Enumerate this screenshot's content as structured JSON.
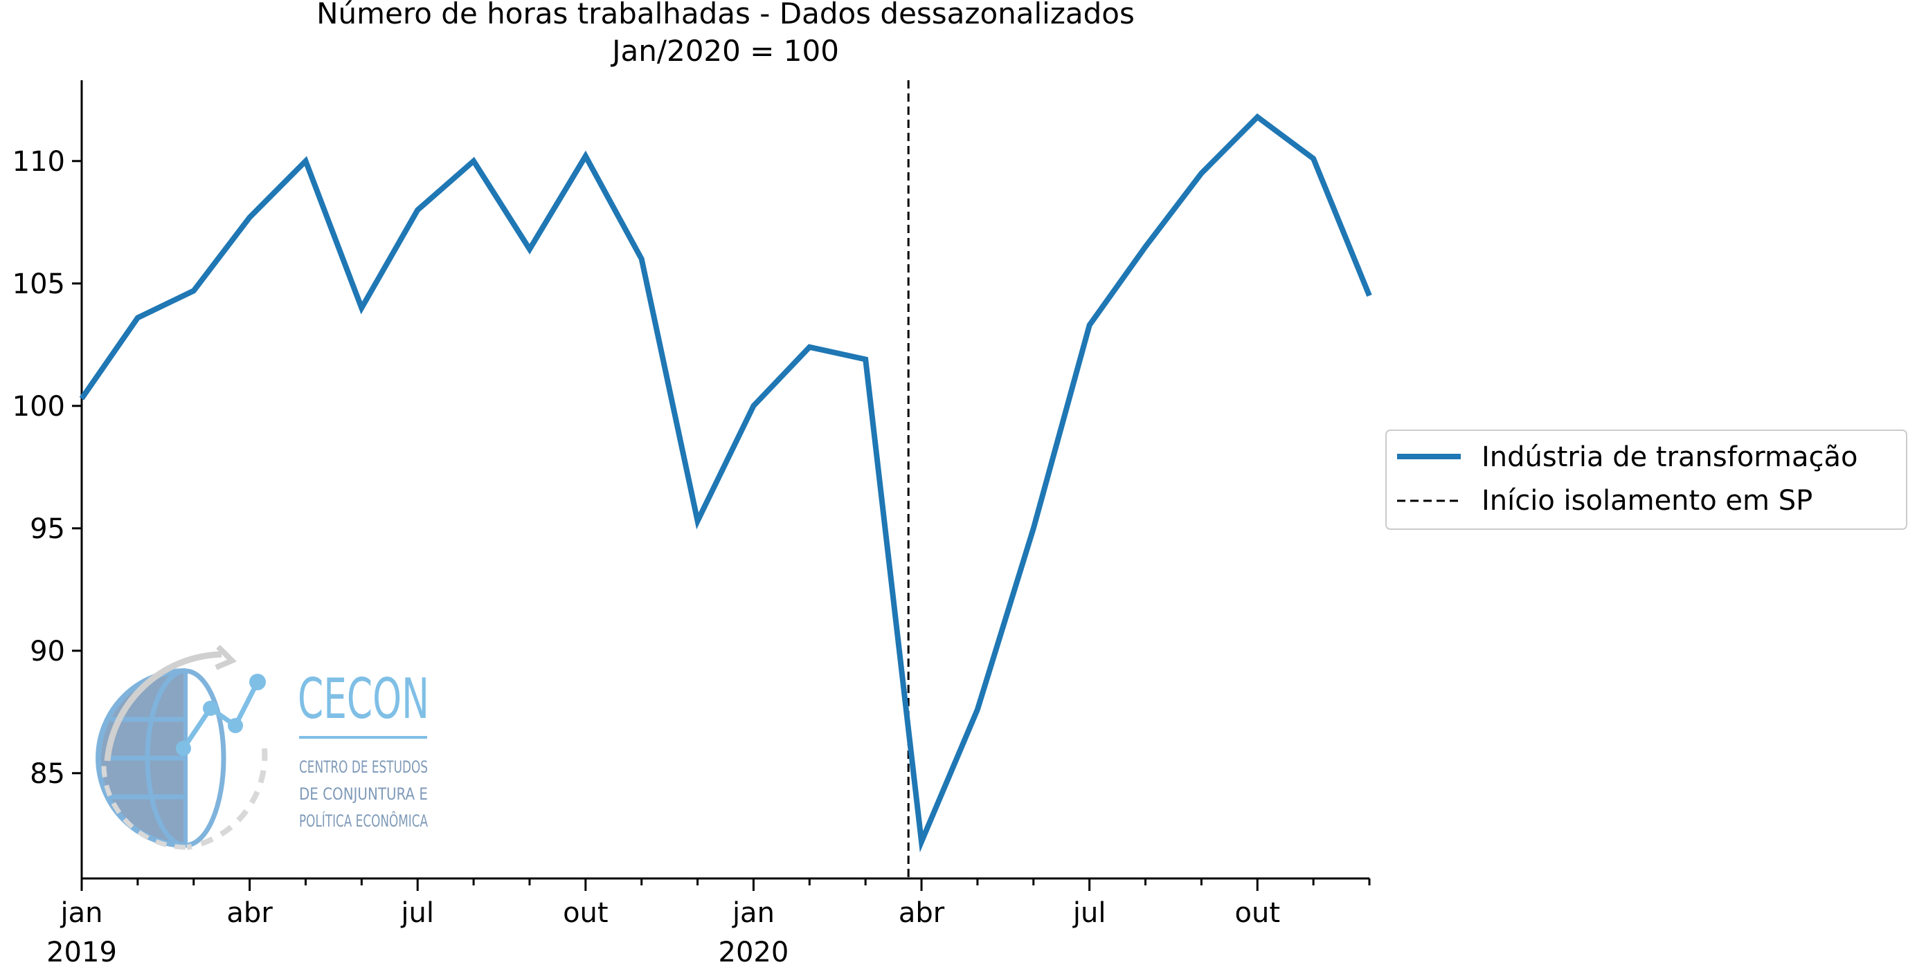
{
  "chart_data": {
    "type": "line",
    "title": "Número de horas trabalhadas - Dados dessazonalizados",
    "subtitle": "Jan/2020 = 100",
    "x_tick_labels": [
      "jan",
      "abr",
      "jul",
      "out",
      "jan",
      "abr",
      "jul",
      "out"
    ],
    "x_year_labels": [
      "2019",
      "2020"
    ],
    "x": [
      "2019-01",
      "2019-02",
      "2019-03",
      "2019-04",
      "2019-05",
      "2019-06",
      "2019-07",
      "2019-08",
      "2019-09",
      "2019-10",
      "2019-11",
      "2019-12",
      "2020-01",
      "2020-02",
      "2020-03",
      "2020-04",
      "2020-05",
      "2020-06",
      "2020-07",
      "2020-08",
      "2020-09",
      "2020-10",
      "2020-11",
      "2020-12"
    ],
    "y_ticks": [
      "85",
      "90",
      "95",
      "100",
      "105",
      "110"
    ],
    "ylim": [
      80.7,
      113.3
    ],
    "series": [
      {
        "name": "Indústria de transformação",
        "color": "#1f77b4",
        "values": [
          100.3,
          103.6,
          104.7,
          107.7,
          110.0,
          104.0,
          108.0,
          110.0,
          106.4,
          110.2,
          106.0,
          95.3,
          100.0,
          102.4,
          101.9,
          82.2,
          87.6,
          95.0,
          103.3,
          106.5,
          109.5,
          111.8,
          110.1,
          104.5
        ]
      }
    ],
    "vline": {
      "label": "Início isolamento em SP",
      "x": "2020-03-24",
      "style": "dashed",
      "color": "#000000"
    },
    "legend_position": "right",
    "grid": false
  },
  "logo": {
    "name": "CECON",
    "line1": "CENTRO DE ESTUDOS",
    "line2": "DE CONJUNTURA E",
    "line3": "POLÍTICA ECONÔMICA"
  }
}
